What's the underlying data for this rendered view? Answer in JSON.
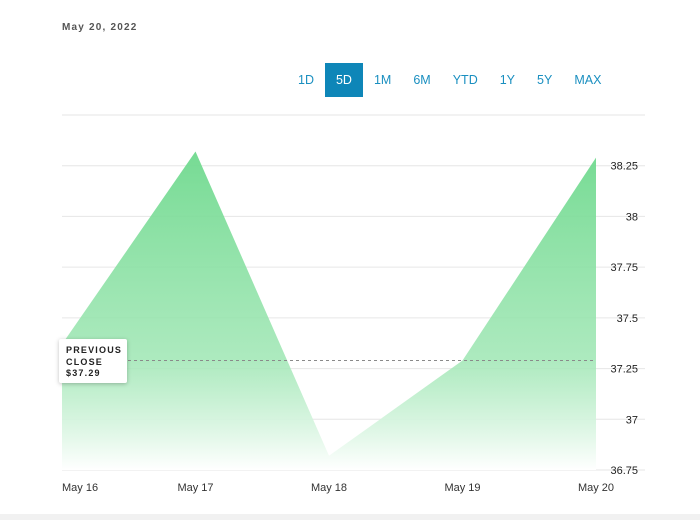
{
  "header": {
    "date": "May 20, 2022"
  },
  "ranges": [
    {
      "label": "1D",
      "active": false
    },
    {
      "label": "5D",
      "active": true
    },
    {
      "label": "1M",
      "active": false
    },
    {
      "label": "6M",
      "active": false
    },
    {
      "label": "YTD",
      "active": false
    },
    {
      "label": "1Y",
      "active": false
    },
    {
      "label": "5Y",
      "active": false
    },
    {
      "label": "MAX",
      "active": false
    }
  ],
  "previous_close": {
    "line1": "PREVIOUS",
    "line2": "CLOSE",
    "value": "$37.29"
  },
  "colors": {
    "accent": "#0e86b8",
    "fill_top": "#6fd98e",
    "fill_bottom": "#ffffff",
    "grid": "#e6e6e6"
  },
  "chart_data": {
    "type": "area",
    "categories": [
      "May 16",
      "May 17",
      "May 18",
      "May 19",
      "May 20"
    ],
    "values": [
      37.37,
      38.32,
      36.82,
      37.29,
      38.29
    ],
    "previous_close": 37.29,
    "ylim": [
      36.75,
      38.5
    ],
    "yticks": [
      36.75,
      37,
      37.25,
      37.5,
      37.75,
      38,
      38.25
    ],
    "ytick_labels": [
      "36.75",
      "37",
      "37.25",
      "37.5",
      "37.75",
      "38",
      "38.25"
    ],
    "grid": true
  }
}
